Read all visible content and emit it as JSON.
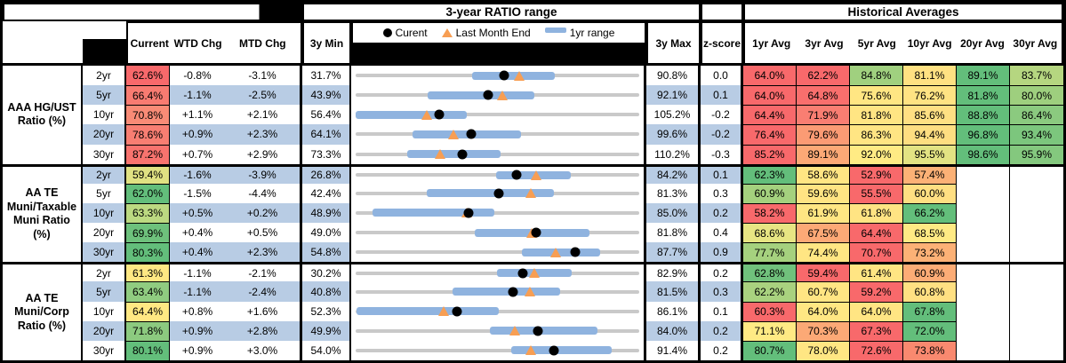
{
  "header": {
    "range_title": "3-year RATIO range",
    "hist_title": "Historical Averages",
    "legend": {
      "current": "Curent",
      "lme": "Last Month End",
      "range1yr": "1yr range"
    },
    "cols": {
      "current": "Current",
      "wtd": "WTD Chg",
      "mtd": "MTD Chg",
      "min": "3y Min",
      "max": "3y Max",
      "z": "z-score"
    },
    "avg_cols": [
      "1yr Avg",
      "3yr Avg",
      "5yr Avg",
      "10yr Avg",
      "20yr Avg",
      "30yr Avg"
    ]
  },
  "colors": {
    "stripe": "#B8CCE4",
    "track": "#C9C9C9",
    "range_bar": "#8FB3DF",
    "marker_orange": "#F79E53",
    "scale_red": "#F8696B",
    "scale_yellow": "#FFEB84",
    "scale_green": "#63BE7B"
  },
  "groups": [
    {
      "label": "AAA HG/UST\nRatio (%)",
      "rows": [
        {
          "tenor": "2yr",
          "current": {
            "t": "62.6%",
            "bg": "#F8696B"
          },
          "wtd": "-0.8%",
          "mtd": "-3.1%",
          "min": "31.7%",
          "max": "90.8%",
          "z": "0.0",
          "avgs": [
            {
              "t": "64.0%",
              "bg": "#F8696B"
            },
            {
              "t": "62.2%",
              "bg": "#F8696B"
            },
            {
              "t": "84.8%",
              "bg": "#A0D07F"
            },
            {
              "t": "81.1%",
              "bg": "#FFE182"
            },
            {
              "t": "89.1%",
              "bg": "#63BE7B"
            },
            {
              "t": "83.7%",
              "bg": "#B5D680"
            }
          ]
        },
        {
          "tenor": "5yr",
          "current": {
            "t": "66.4%",
            "bg": "#F87B71"
          },
          "wtd": "-1.1%",
          "mtd": "-2.5%",
          "min": "43.9%",
          "max": "92.1%",
          "z": "0.1",
          "avgs": [
            {
              "t": "64.0%",
              "bg": "#F8696B"
            },
            {
              "t": "64.8%",
              "bg": "#F96F6D"
            },
            {
              "t": "75.6%",
              "bg": "#FFE683"
            },
            {
              "t": "76.2%",
              "bg": "#FFE383"
            },
            {
              "t": "81.8%",
              "bg": "#63BE7B"
            },
            {
              "t": "80.0%",
              "bg": "#9ECF7E"
            }
          ]
        },
        {
          "tenor": "10yr",
          "current": {
            "t": "70.8%",
            "bg": "#F98B76"
          },
          "wtd": "+1.1%",
          "mtd": "+2.1%",
          "min": "56.4%",
          "max": "105.2%",
          "z": "-0.2",
          "avgs": [
            {
              "t": "64.4%",
              "bg": "#F8696B"
            },
            {
              "t": "71.9%",
              "bg": "#F97E72"
            },
            {
              "t": "81.8%",
              "bg": "#FFE583"
            },
            {
              "t": "85.6%",
              "bg": "#FFE083"
            },
            {
              "t": "88.8%",
              "bg": "#63BE7B"
            },
            {
              "t": "86.4%",
              "bg": "#8BCA7F"
            }
          ]
        },
        {
          "tenor": "20yr",
          "current": {
            "t": "78.6%",
            "bg": "#F87E72"
          },
          "wtd": "+0.9%",
          "mtd": "+2.3%",
          "min": "64.1%",
          "max": "99.6%",
          "z": "-0.2",
          "avgs": [
            {
              "t": "76.4%",
              "bg": "#F8696B"
            },
            {
              "t": "79.6%",
              "bg": "#FB9B74"
            },
            {
              "t": "86.3%",
              "bg": "#FFE583"
            },
            {
              "t": "94.4%",
              "bg": "#FEDE81"
            },
            {
              "t": "96.8%",
              "bg": "#63BE7B"
            },
            {
              "t": "93.4%",
              "bg": "#7CC67D"
            }
          ]
        },
        {
          "tenor": "30yr",
          "current": {
            "t": "87.2%",
            "bg": "#F8736E"
          },
          "wtd": "+0.7%",
          "mtd": "+2.9%",
          "min": "73.3%",
          "max": "110.2%",
          "z": "-0.3",
          "avgs": [
            {
              "t": "85.2%",
              "bg": "#F8696B"
            },
            {
              "t": "89.1%",
              "bg": "#FCA976"
            },
            {
              "t": "92.0%",
              "bg": "#FFEB84"
            },
            {
              "t": "95.5%",
              "bg": "#E3E383"
            },
            {
              "t": "98.6%",
              "bg": "#63BE7B"
            },
            {
              "t": "95.9%",
              "bg": "#84C87E"
            }
          ]
        }
      ]
    },
    {
      "label": "AA TE\nMuni/Taxable\nMuni Ratio\n(%)",
      "rows": [
        {
          "tenor": "2yr",
          "current": {
            "t": "59.4%",
            "bg": "#E0E182"
          },
          "wtd": "-1.6%",
          "mtd": "-3.9%",
          "min": "26.8%",
          "max": "84.2%",
          "z": "0.1",
          "avgs": [
            {
              "t": "62.3%",
              "bg": "#63BE7B"
            },
            {
              "t": "58.6%",
              "bg": "#FFE583"
            },
            {
              "t": "52.9%",
              "bg": "#F8696B"
            },
            {
              "t": "57.4%",
              "bg": "#FCB176"
            },
            null,
            null
          ]
        },
        {
          "tenor": "5yr",
          "current": {
            "t": "62.0%",
            "bg": "#63BE7B"
          },
          "wtd": "-1.5%",
          "mtd": "-4.4%",
          "min": "42.4%",
          "max": "81.3%",
          "z": "0.3",
          "avgs": [
            {
              "t": "60.9%",
              "bg": "#A4D17E"
            },
            {
              "t": "59.6%",
              "bg": "#FFE483"
            },
            {
              "t": "55.5%",
              "bg": "#F8696B"
            },
            {
              "t": "60.0%",
              "bg": "#FFDF82"
            },
            null,
            null
          ]
        },
        {
          "tenor": "10yr",
          "current": {
            "t": "63.3%",
            "bg": "#BCD981"
          },
          "wtd": "+0.5%",
          "mtd": "+0.2%",
          "min": "48.9%",
          "max": "85.0%",
          "z": "0.2",
          "avgs": [
            {
              "t": "58.2%",
              "bg": "#F8696B"
            },
            {
              "t": "61.9%",
              "bg": "#FFE683"
            },
            {
              "t": "61.8%",
              "bg": "#FFE483"
            },
            {
              "t": "66.2%",
              "bg": "#63BE7B"
            },
            null,
            null
          ]
        },
        {
          "tenor": "20yr",
          "current": {
            "t": "69.9%",
            "bg": "#6EC17C"
          },
          "wtd": "+0.4%",
          "mtd": "+0.5%",
          "min": "49.0%",
          "max": "81.8%",
          "z": "0.4",
          "avgs": [
            {
              "t": "68.6%",
              "bg": "#E7E583"
            },
            {
              "t": "67.5%",
              "bg": "#FCA976"
            },
            {
              "t": "64.4%",
              "bg": "#F8696B"
            },
            {
              "t": "68.5%",
              "bg": "#FFEA84"
            },
            null,
            null
          ]
        },
        {
          "tenor": "30yr",
          "current": {
            "t": "80.3%",
            "bg": "#63BE7B"
          },
          "wtd": "+0.4%",
          "mtd": "+2.3%",
          "min": "54.8%",
          "max": "87.7%",
          "z": "0.9",
          "avgs": [
            {
              "t": "77.7%",
              "bg": "#A5D17E"
            },
            {
              "t": "74.4%",
              "bg": "#FFE683"
            },
            {
              "t": "70.7%",
              "bg": "#F8696B"
            },
            {
              "t": "73.2%",
              "bg": "#FCB176"
            },
            null,
            null
          ]
        }
      ]
    },
    {
      "label": "AA TE\nMuni/Corp\nRatio (%)",
      "rows": [
        {
          "tenor": "2yr",
          "current": {
            "t": "61.3%",
            "bg": "#FFE883"
          },
          "wtd": "-1.1%",
          "mtd": "-2.1%",
          "min": "30.2%",
          "max": "82.9%",
          "z": "0.2",
          "avgs": [
            {
              "t": "62.8%",
              "bg": "#70C17C"
            },
            {
              "t": "59.4%",
              "bg": "#F8696B"
            },
            {
              "t": "61.4%",
              "bg": "#FFE583"
            },
            {
              "t": "60.9%",
              "bg": "#FCAC76"
            },
            null,
            null
          ]
        },
        {
          "tenor": "5yr",
          "current": {
            "t": "63.4%",
            "bg": "#90CC80"
          },
          "wtd": "-1.1%",
          "mtd": "-2.4%",
          "min": "40.8%",
          "max": "81.5%",
          "z": "0.3",
          "avgs": [
            {
              "t": "62.2%",
              "bg": "#A9D27F"
            },
            {
              "t": "60.7%",
              "bg": "#FFE583"
            },
            {
              "t": "59.2%",
              "bg": "#F8696B"
            },
            {
              "t": "60.8%",
              "bg": "#FFE082"
            },
            null,
            null
          ]
        },
        {
          "tenor": "10yr",
          "current": {
            "t": "64.4%",
            "bg": "#FFE883"
          },
          "wtd": "+0.8%",
          "mtd": "+1.6%",
          "min": "52.3%",
          "max": "86.1%",
          "z": "0.1",
          "avgs": [
            {
              "t": "60.3%",
              "bg": "#F8696B"
            },
            {
              "t": "64.0%",
              "bg": "#FFE783"
            },
            {
              "t": "64.0%",
              "bg": "#FFE583"
            },
            {
              "t": "67.8%",
              "bg": "#63BE7B"
            },
            null,
            null
          ]
        },
        {
          "tenor": "20yr",
          "current": {
            "t": "71.8%",
            "bg": "#8CCA7F"
          },
          "wtd": "+0.9%",
          "mtd": "+2.8%",
          "min": "49.9%",
          "max": "84.0%",
          "z": "0.2",
          "avgs": [
            {
              "t": "71.1%",
              "bg": "#FFEA84"
            },
            {
              "t": "70.3%",
              "bg": "#FCA976"
            },
            {
              "t": "67.3%",
              "bg": "#F8696B"
            },
            {
              "t": "72.0%",
              "bg": "#63BE7B"
            },
            null,
            null
          ]
        },
        {
          "tenor": "30yr",
          "current": {
            "t": "80.1%",
            "bg": "#63BE7B"
          },
          "wtd": "+0.9%",
          "mtd": "+3.0%",
          "min": "54.0%",
          "max": "91.4%",
          "z": "0.2",
          "avgs": [
            {
              "t": "80.7%",
              "bg": "#63BE7B"
            },
            {
              "t": "78.0%",
              "bg": "#FFE683"
            },
            {
              "t": "72.6%",
              "bg": "#F8696B"
            },
            {
              "t": "73.8%",
              "bg": "#F9896F"
            },
            null,
            null
          ]
        }
      ]
    }
  ],
  "chart_data": {
    "type": "range",
    "title": "3-year RATIO range",
    "legend": [
      "Curent",
      "Last Month End",
      "1yr range"
    ],
    "x_units": "ratio %",
    "rows": [
      {
        "group": "AAA HG/UST Ratio (%)",
        "tenor": "2yr",
        "min_3y": 31.7,
        "range_1yr": [
          56.0,
          73.2
        ],
        "current": 62.6,
        "last_month_end": 65.7,
        "max_3y": 90.8
      },
      {
        "group": "AAA HG/UST Ratio (%)",
        "tenor": "5yr",
        "min_3y": 43.9,
        "range_1yr": [
          56.2,
          74.2
        ],
        "current": 66.4,
        "last_month_end": 68.9,
        "max_3y": 92.1
      },
      {
        "group": "AAA HG/UST Ratio (%)",
        "tenor": "10yr",
        "min_3y": 56.4,
        "range_1yr": [
          56.4,
          75.5
        ],
        "current": 70.8,
        "last_month_end": 68.7,
        "max_3y": 105.2
      },
      {
        "group": "AAA HG/UST Ratio (%)",
        "tenor": "20yr",
        "min_3y": 64.1,
        "range_1yr": [
          71.2,
          84.8
        ],
        "current": 78.6,
        "last_month_end": 76.3,
        "max_3y": 99.6
      },
      {
        "group": "AAA HG/UST Ratio (%)",
        "tenor": "30yr",
        "min_3y": 73.3,
        "range_1yr": [
          80.0,
          92.2
        ],
        "current": 87.2,
        "last_month_end": 84.3,
        "max_3y": 110.2
      },
      {
        "group": "AA TE Muni/Taxable Muni Ratio (%)",
        "tenor": "2yr",
        "min_3y": 26.8,
        "range_1yr": [
          55.3,
          70.3
        ],
        "current": 59.4,
        "last_month_end": 63.3,
        "max_3y": 84.2
      },
      {
        "group": "AA TE Muni/Taxable Muni Ratio (%)",
        "tenor": "5yr",
        "min_3y": 42.4,
        "range_1yr": [
          52.2,
          69.6
        ],
        "current": 62.0,
        "last_month_end": 66.4,
        "max_3y": 81.3
      },
      {
        "group": "AA TE Muni/Taxable Muni Ratio (%)",
        "tenor": "10yr",
        "min_3y": 48.9,
        "range_1yr": [
          51.1,
          66.5
        ],
        "current": 63.3,
        "last_month_end": 63.1,
        "max_3y": 85.0
      },
      {
        "group": "AA TE Muni/Taxable Muni Ratio (%)",
        "tenor": "20yr",
        "min_3y": 49.0,
        "range_1yr": [
          62.8,
          76.0
        ],
        "current": 69.9,
        "last_month_end": 69.4,
        "max_3y": 81.8
      },
      {
        "group": "AA TE Muni/Taxable Muni Ratio (%)",
        "tenor": "30yr",
        "min_3y": 54.8,
        "range_1yr": [
          74.1,
          83.2
        ],
        "current": 80.3,
        "last_month_end": 78.0,
        "max_3y": 87.7
      },
      {
        "group": "AA TE Muni/Corp Ratio (%)",
        "tenor": "2yr",
        "min_3y": 30.2,
        "range_1yr": [
          56.4,
          70.4
        ],
        "current": 61.3,
        "last_month_end": 63.4,
        "max_3y": 82.9
      },
      {
        "group": "AA TE Muni/Corp Ratio (%)",
        "tenor": "5yr",
        "min_3y": 40.8,
        "range_1yr": [
          54.7,
          70.2
        ],
        "current": 63.4,
        "last_month_end": 65.8,
        "max_3y": 81.5
      },
      {
        "group": "AA TE Muni/Corp Ratio (%)",
        "tenor": "10yr",
        "min_3y": 52.3,
        "range_1yr": [
          52.4,
          69.4
        ],
        "current": 64.4,
        "last_month_end": 62.8,
        "max_3y": 86.1
      },
      {
        "group": "AA TE Muni/Corp Ratio (%)",
        "tenor": "20yr",
        "min_3y": 49.9,
        "range_1yr": [
          66.0,
          79.0
        ],
        "current": 71.8,
        "last_month_end": 69.0,
        "max_3y": 84.0
      },
      {
        "group": "AA TE Muni/Corp Ratio (%)",
        "tenor": "30yr",
        "min_3y": 54.0,
        "range_1yr": [
          74.5,
          87.8
        ],
        "current": 80.1,
        "last_month_end": 77.1,
        "max_3y": 91.4
      }
    ]
  }
}
